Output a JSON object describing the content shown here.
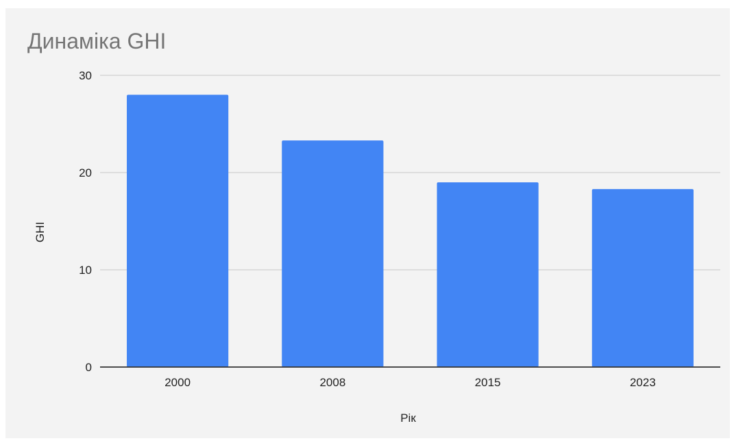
{
  "chart_data": {
    "type": "bar",
    "title": "Динаміка GHI",
    "xlabel": "Рік",
    "ylabel": "GHI",
    "categories": [
      "2000",
      "2008",
      "2015",
      "2023"
    ],
    "values": [
      28.0,
      23.3,
      19.0,
      18.3
    ],
    "ylim": [
      0,
      30
    ],
    "yticks": [
      0,
      10,
      20,
      30
    ],
    "grid": true,
    "legend": "none",
    "colors": {
      "bar": "#4285f4",
      "grid": "#d0d0d0",
      "axis": "#333333",
      "background": "#f3f3f3",
      "title": "#757575"
    }
  }
}
